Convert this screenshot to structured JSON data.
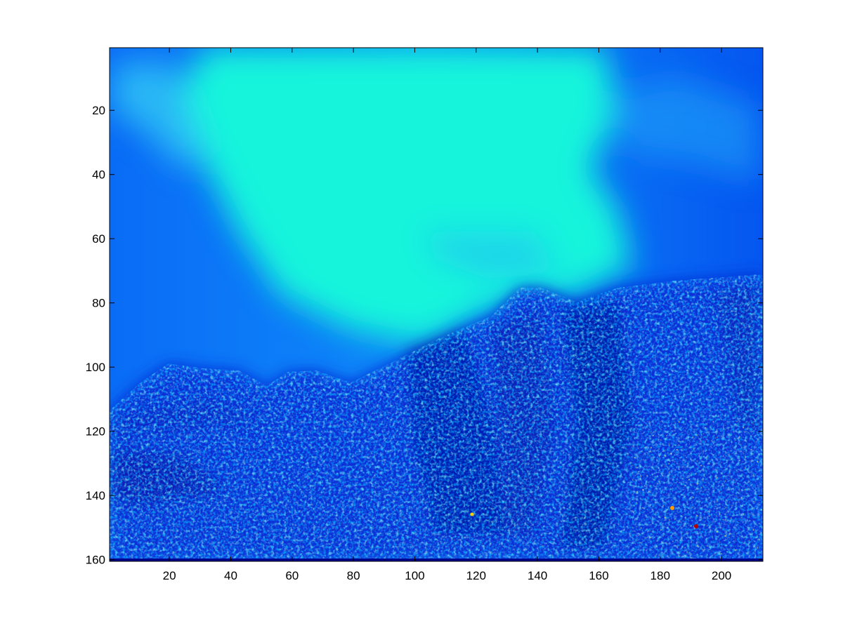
{
  "chart_data": {
    "type": "heatmap",
    "title": "",
    "xlabel": "",
    "ylabel": "",
    "x_range": [
      0.5,
      213.5
    ],
    "y_range": [
      0.5,
      160.5
    ],
    "y_reversed": true,
    "grid": false,
    "colormap": "jet",
    "x_ticks": [
      20,
      40,
      60,
      80,
      100,
      120,
      140,
      160,
      180,
      200
    ],
    "y_ticks": [
      20,
      40,
      60,
      80,
      100,
      120,
      140,
      160
    ],
    "x_tick_labels": [
      "20",
      "40",
      "60",
      "80",
      "100",
      "120",
      "140",
      "160",
      "180",
      "200"
    ],
    "y_tick_labels": [
      "20",
      "40",
      "60",
      "80",
      "100",
      "120",
      "140",
      "160"
    ],
    "image_size": {
      "columns": 213,
      "rows": 160
    }
  }
}
